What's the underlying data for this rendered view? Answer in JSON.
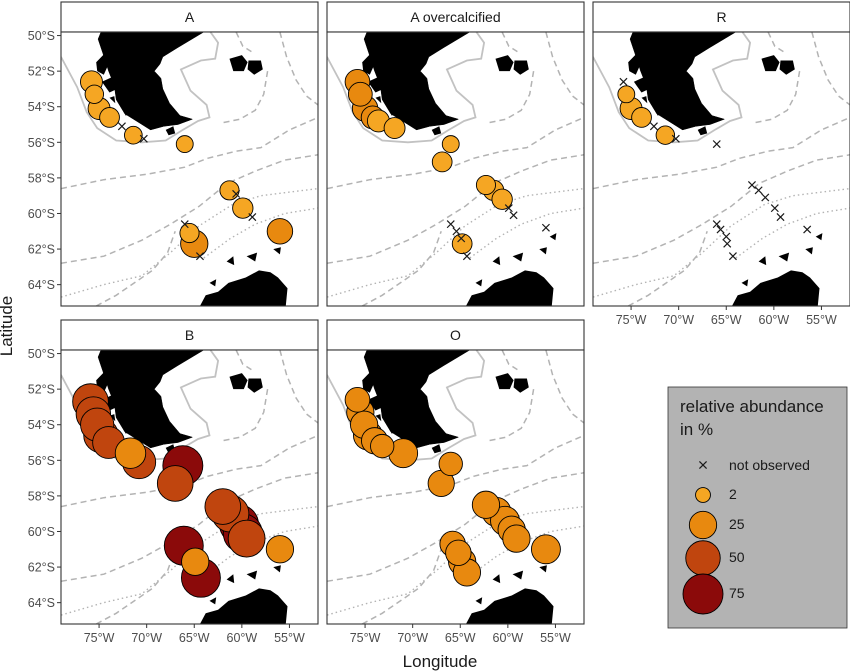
{
  "figure": {
    "xlabel": "Longitude",
    "ylabel": "Latitude",
    "lat_ticks": [
      "50°S",
      "52°S",
      "54°S",
      "56°S",
      "58°S",
      "60°S",
      "62°S",
      "64°S"
    ],
    "lat_values": [
      -50,
      -52,
      -54,
      -56,
      -58,
      -60,
      -62,
      -64
    ],
    "lon_ticks": [
      "75°W",
      "70°W",
      "65°W",
      "60°W",
      "55°W"
    ],
    "lon_values": [
      -75,
      -70,
      -65,
      -60,
      -55
    ]
  },
  "legend": {
    "title_line1": "relative abundance",
    "title_line2": "in %",
    "items": [
      {
        "label": "not observed",
        "value": 0
      },
      {
        "label": "2",
        "value": 2
      },
      {
        "label": "25",
        "value": 25
      },
      {
        "label": "50",
        "value": 50
      },
      {
        "label": "75",
        "value": 75
      }
    ],
    "colors": {
      "2": "#F5A623",
      "25": "#E8890F",
      "50": "#C0450E",
      "75": "#8B0A0A"
    },
    "box_color": "#B3B3B3"
  },
  "chart_data": [
    {
      "type": "scatter",
      "title": "A",
      "xlim": [
        -79,
        -52
      ],
      "ylim": [
        -65.2,
        -49.8
      ],
      "points": [
        {
          "lon": -75.8,
          "lat": -52.6,
          "value": 12
        },
        {
          "lon": -75.5,
          "lat": -53.3,
          "value": 6
        },
        {
          "lon": -75.0,
          "lat": -54.1,
          "value": 12
        },
        {
          "lon": -73.9,
          "lat": -54.6,
          "value": 8
        },
        {
          "lon": -72.6,
          "lat": -55.1,
          "value": 0
        },
        {
          "lon": -71.4,
          "lat": -55.6,
          "value": 5
        },
        {
          "lon": -70.3,
          "lat": -55.8,
          "value": 0
        },
        {
          "lon": -66.0,
          "lat": -56.1,
          "value": 4
        },
        {
          "lon": -61.3,
          "lat": -58.7,
          "value": 7
        },
        {
          "lon": -60.6,
          "lat": -58.9,
          "value": 0
        },
        {
          "lon": -59.9,
          "lat": -59.7,
          "value": 9
        },
        {
          "lon": -58.9,
          "lat": -60.2,
          "value": 0
        },
        {
          "lon": -56.0,
          "lat": -61.0,
          "value": 20
        },
        {
          "lon": -66.0,
          "lat": -60.6,
          "value": 0
        },
        {
          "lon": -65.5,
          "lat": -61.1,
          "value": 7
        },
        {
          "lon": -65.0,
          "lat": -61.7,
          "value": 25
        },
        {
          "lon": -64.4,
          "lat": -62.4,
          "value": 0
        }
      ]
    },
    {
      "type": "scatter",
      "title": "A overcalcified",
      "xlim": [
        -79,
        -52
      ],
      "ylim": [
        -65.2,
        -49.8
      ],
      "points": [
        {
          "lon": -75.8,
          "lat": -52.6,
          "value": 18
        },
        {
          "lon": -75.5,
          "lat": -53.3,
          "value": 16
        },
        {
          "lon": -75.0,
          "lat": -54.1,
          "value": 20
        },
        {
          "lon": -74.2,
          "lat": -54.6,
          "value": 14
        },
        {
          "lon": -73.6,
          "lat": -54.8,
          "value": 12
        },
        {
          "lon": -71.9,
          "lat": -55.2,
          "value": 10
        },
        {
          "lon": -66.0,
          "lat": -56.1,
          "value": 4
        },
        {
          "lon": -66.9,
          "lat": -57.1,
          "value": 8
        },
        {
          "lon": -62.3,
          "lat": -58.4,
          "value": 7
        },
        {
          "lon": -61.5,
          "lat": -58.7,
          "value": 9
        },
        {
          "lon": -60.6,
          "lat": -59.2,
          "value": 9
        },
        {
          "lon": -59.9,
          "lat": -59.7,
          "value": 0
        },
        {
          "lon": -59.4,
          "lat": -60.1,
          "value": 0
        },
        {
          "lon": -56.0,
          "lat": -60.8,
          "value": 0
        },
        {
          "lon": -66.0,
          "lat": -60.6,
          "value": 0
        },
        {
          "lon": -65.4,
          "lat": -61.0,
          "value": 0
        },
        {
          "lon": -64.9,
          "lat": -61.4,
          "value": 0
        },
        {
          "lon": -64.8,
          "lat": -61.7,
          "value": 8
        },
        {
          "lon": -64.3,
          "lat": -62.4,
          "value": 0
        }
      ]
    },
    {
      "type": "scatter",
      "title": "R",
      "xlim": [
        -79,
        -52
      ],
      "ylim": [
        -65.2,
        -49.8
      ],
      "points": [
        {
          "lon": -75.8,
          "lat": -52.6,
          "value": 0
        },
        {
          "lon": -75.5,
          "lat": -53.3,
          "value": 4
        },
        {
          "lon": -75.0,
          "lat": -54.1,
          "value": 12
        },
        {
          "lon": -73.9,
          "lat": -54.6,
          "value": 8
        },
        {
          "lon": -72.6,
          "lat": -55.1,
          "value": 0
        },
        {
          "lon": -71.4,
          "lat": -55.6,
          "value": 6
        },
        {
          "lon": -70.3,
          "lat": -55.8,
          "value": 0
        },
        {
          "lon": -66.0,
          "lat": -56.1,
          "value": 0
        },
        {
          "lon": -62.3,
          "lat": -58.4,
          "value": 0
        },
        {
          "lon": -61.6,
          "lat": -58.7,
          "value": 0
        },
        {
          "lon": -60.9,
          "lat": -59.1,
          "value": 0
        },
        {
          "lon": -59.9,
          "lat": -59.7,
          "value": 0
        },
        {
          "lon": -59.3,
          "lat": -60.2,
          "value": 0
        },
        {
          "lon": -56.5,
          "lat": -60.9,
          "value": 0
        },
        {
          "lon": -66.0,
          "lat": -60.6,
          "value": 0
        },
        {
          "lon": -65.6,
          "lat": -60.9,
          "value": 0
        },
        {
          "lon": -65.0,
          "lat": -61.3,
          "value": 0
        },
        {
          "lon": -64.9,
          "lat": -61.7,
          "value": 0
        },
        {
          "lon": -64.3,
          "lat": -62.4,
          "value": 0
        }
      ]
    },
    {
      "type": "scatter",
      "title": "B",
      "xlim": [
        -79,
        -52
      ],
      "ylim": [
        -65.2,
        -49.8
      ],
      "points": [
        {
          "lon": -75.9,
          "lat": -52.7,
          "value": 55
        },
        {
          "lon": -75.6,
          "lat": -53.4,
          "value": 50
        },
        {
          "lon": -75.2,
          "lat": -54.0,
          "value": 45
        },
        {
          "lon": -74.8,
          "lat": -54.6,
          "value": 50
        },
        {
          "lon": -74.0,
          "lat": -55.0,
          "value": 40
        },
        {
          "lon": -71.7,
          "lat": -55.6,
          "value": 35
        },
        {
          "lon": -70.8,
          "lat": -56.1,
          "value": 45
        },
        {
          "lon": -66.2,
          "lat": -56.3,
          "value": 75
        },
        {
          "lon": -67.0,
          "lat": -57.3,
          "value": 55
        },
        {
          "lon": -62.0,
          "lat": -58.6,
          "value": 55
        },
        {
          "lon": -61.2,
          "lat": -59.0,
          "value": 60
        },
        {
          "lon": -60.3,
          "lat": -59.6,
          "value": 70
        },
        {
          "lon": -59.9,
          "lat": -60.1,
          "value": 70
        },
        {
          "lon": -59.5,
          "lat": -60.4,
          "value": 60
        },
        {
          "lon": -56.0,
          "lat": -61.0,
          "value": 25
        },
        {
          "lon": -66.1,
          "lat": -60.8,
          "value": 70
        },
        {
          "lon": -64.9,
          "lat": -61.7,
          "value": 25
        },
        {
          "lon": -64.3,
          "lat": -62.6,
          "value": 70
        }
      ]
    },
    {
      "type": "scatter",
      "title": "O",
      "xlim": [
        -79,
        -52
      ],
      "ylim": [
        -65.2,
        -49.8
      ],
      "points": [
        {
          "lon": -75.8,
          "lat": -52.6,
          "value": 18
        },
        {
          "lon": -75.5,
          "lat": -53.3,
          "value": 25
        },
        {
          "lon": -75.1,
          "lat": -54.0,
          "value": 25
        },
        {
          "lon": -74.7,
          "lat": -54.6,
          "value": 30
        },
        {
          "lon": -74.0,
          "lat": -54.9,
          "value": 22
        },
        {
          "lon": -73.2,
          "lat": -55.2,
          "value": 15
        },
        {
          "lon": -71.0,
          "lat": -55.6,
          "value": 30
        },
        {
          "lon": -66.0,
          "lat": -56.2,
          "value": 15
        },
        {
          "lon": -67.0,
          "lat": -57.3,
          "value": 22
        },
        {
          "lon": -62.3,
          "lat": -58.5,
          "value": 25
        },
        {
          "lon": -61.2,
          "lat": -58.9,
          "value": 30
        },
        {
          "lon": -60.3,
          "lat": -59.4,
          "value": 30
        },
        {
          "lon": -59.6,
          "lat": -59.9,
          "value": 25
        },
        {
          "lon": -59.1,
          "lat": -60.4,
          "value": 25
        },
        {
          "lon": -56.0,
          "lat": -61.0,
          "value": 30
        },
        {
          "lon": -65.8,
          "lat": -60.7,
          "value": 20
        },
        {
          "lon": -65.2,
          "lat": -61.2,
          "value": 20
        },
        {
          "lon": -64.8,
          "lat": -61.7,
          "value": 25
        },
        {
          "lon": -64.3,
          "lat": -62.3,
          "value": 25
        }
      ]
    }
  ]
}
